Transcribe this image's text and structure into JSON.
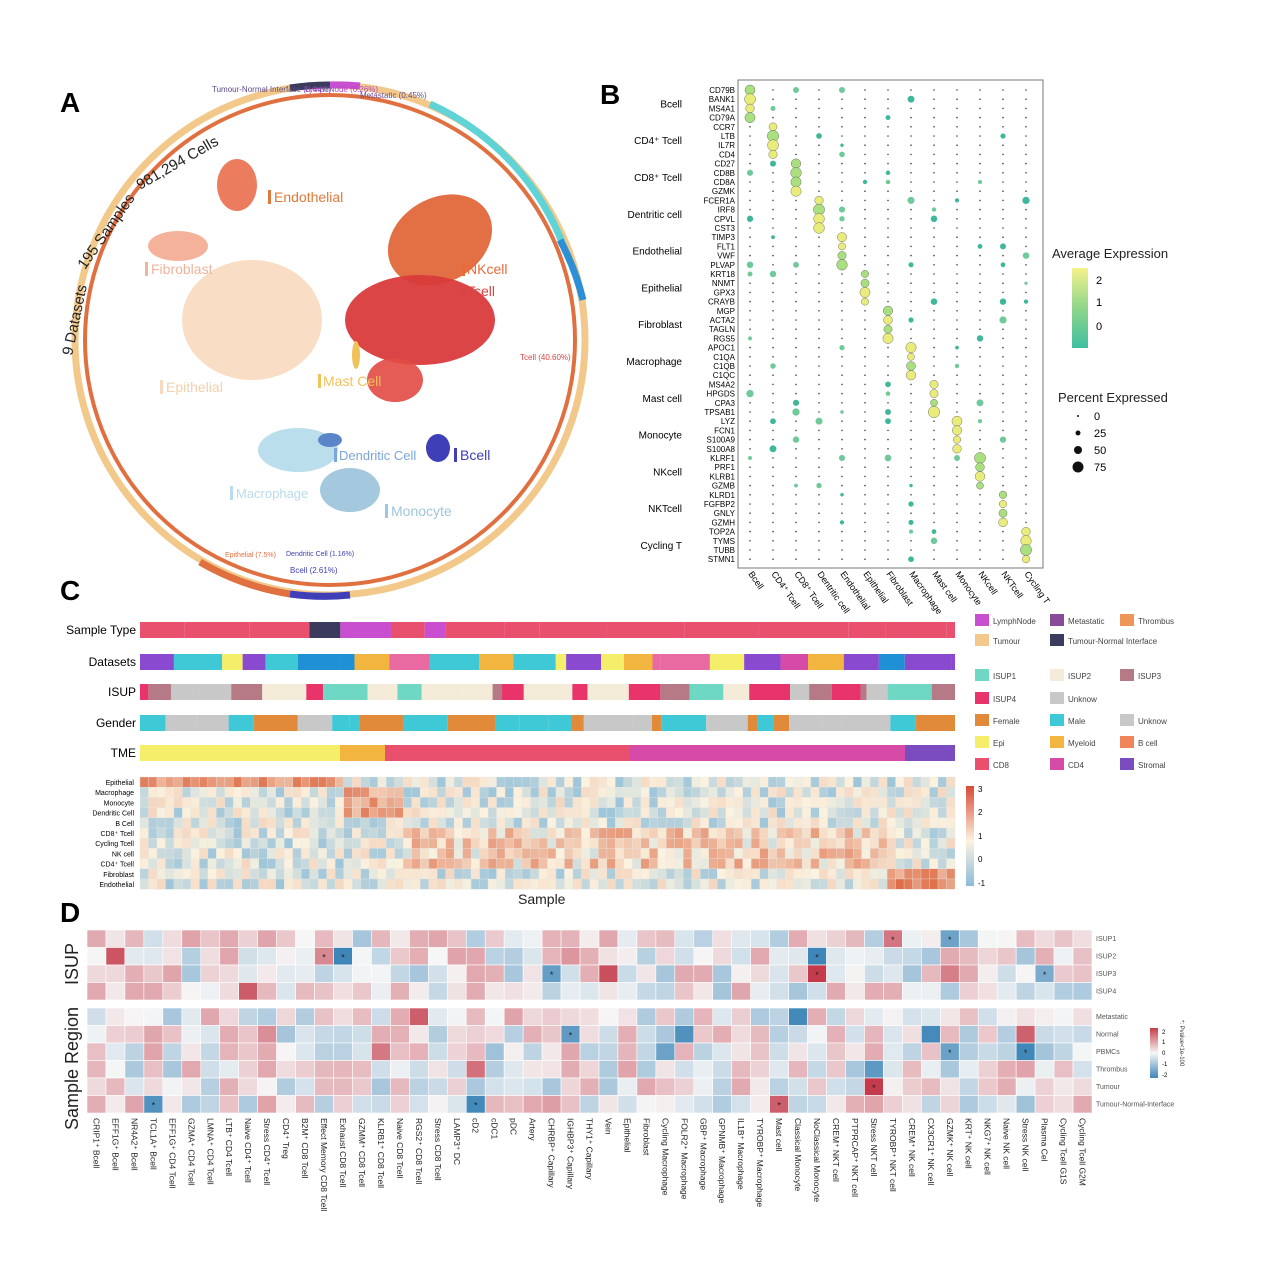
{
  "panel_labels": {
    "a": "A",
    "b": "B",
    "c": "C",
    "d": "D"
  },
  "panel_a": {
    "ring_labels": {
      "datasets": "9 Datasets",
      "samples": "195 Samples",
      "cells": "981,294 Cells"
    },
    "clusters": [
      {
        "name": "Endothelial",
        "color": "#e07a3a"
      },
      {
        "name": "NKcell",
        "color": "#e86b3a"
      },
      {
        "name": "Tcell",
        "color": "#d94444"
      },
      {
        "name": "Fibroblast",
        "color": "#f0b39c"
      },
      {
        "name": "Mast Cell",
        "color": "#f2c25a"
      },
      {
        "name": "Epithelial",
        "color": "#f6d9be"
      },
      {
        "name": "Dendritic Cell",
        "color": "#7aa7d8"
      },
      {
        "name": "Bcell",
        "color": "#3f3fb8"
      },
      {
        "name": "Macrophage",
        "color": "#b7dcec"
      },
      {
        "name": "Monocyte",
        "color": "#9fc6dc"
      }
    ],
    "ring_annotations": {
      "tumour_normal": "Tumour-Normal Interface (0.44%)",
      "lymph_node": "LymphNode (0.26%)",
      "metastatic": "Metastatic (0.45%)",
      "tcell": "Tcell (40.60%)",
      "bcell": "Bcell (2.61%)",
      "dendritic": "Dendritic Cell (1.16%)",
      "epithelial": "Epithelial (7.5%)"
    }
  },
  "panel_b": {
    "chart_data": {
      "type": "scatter",
      "subtype": "dot-plot",
      "y_groups": [
        {
          "name": "Bcell",
          "genes": [
            "CD79B",
            "BANK1",
            "MS4A1",
            "CD79A"
          ]
        },
        {
          "name": "CD4⁺ Tcell",
          "genes": [
            "CCR7",
            "LTB",
            "IL7R",
            "CD4"
          ]
        },
        {
          "name": "CD8⁺ Tcell",
          "genes": [
            "CD27",
            "CD8B",
            "CD8A",
            "GZMK"
          ]
        },
        {
          "name": "Dentritic cell",
          "genes": [
            "FCER1A",
            "IRF8",
            "CPVL",
            "CST3"
          ]
        },
        {
          "name": "Endothelial",
          "genes": [
            "TIMP3",
            "FLT1",
            "VWF",
            "PLVAP"
          ]
        },
        {
          "name": "Epithelial",
          "genes": [
            "KRT18",
            "NNMT",
            "GPX3",
            "CRAYB"
          ]
        },
        {
          "name": "Fibroblast",
          "genes": [
            "MGP",
            "ACTA2",
            "TAGLN",
            "RGS5"
          ]
        },
        {
          "name": "Macrophage",
          "genes": [
            "APOC1",
            "C1QA",
            "C1QB",
            "C1QC"
          ]
        },
        {
          "name": "Mast cell",
          "genes": [
            "MS4A2",
            "HPGDS",
            "CPA3",
            "TPSAB1"
          ]
        },
        {
          "name": "Monocyte",
          "genes": [
            "LYZ",
            "FCN1",
            "S100A9",
            "S100A8"
          ]
        },
        {
          "name": "NKcell",
          "genes": [
            "KLRF1",
            "PRF1",
            "KLRB1",
            "GZMB"
          ]
        },
        {
          "name": "NKTcell",
          "genes": [
            "KLRD1",
            "FGFBP2",
            "GNLY",
            "GZMH"
          ]
        },
        {
          "name": "Cycling T",
          "genes": [
            "TOP2A",
            "TYMS",
            "TUBB",
            "STMN1"
          ]
        }
      ],
      "x_categories": [
        "Bcell",
        "CD4⁺ Tcell",
        "CD8⁺ Tcell",
        "Dentritic cell",
        "Endothelial",
        "Epithelial",
        "Fibroblast",
        "Macrophage",
        "Mast cell",
        "Monocyte",
        "NKcell",
        "NKTcell",
        "Cycling T"
      ],
      "legend_color_title": "Average Expression",
      "legend_color_ticks": [
        "2",
        "1",
        "0"
      ],
      "legend_size_title": "Percent Expressed",
      "legend_size_ticks": [
        "0",
        "25",
        "50",
        "75"
      ]
    }
  },
  "panel_c": {
    "tracks": [
      "Sample Type",
      "Datasets",
      "ISUP",
      "Gender",
      "TME"
    ],
    "legends": [
      [
        {
          "label": "LymphNode",
          "color": "#c84fd0"
        },
        {
          "label": "Metastatic",
          "color": "#8a4a9a"
        },
        {
          "label": "Thrombus",
          "color": "#f0955a"
        },
        {
          "label": "Tumour",
          "color": "#f2c98a"
        },
        {
          "label": "Tumour-Normal Interface",
          "color": "#3b3b5e"
        }
      ],
      [
        {
          "label": "ISUP1",
          "color": "#6fd8c4"
        },
        {
          "label": "ISUP2",
          "color": "#f4ecd8"
        },
        {
          "label": "ISUP3",
          "color": "#b57a85"
        },
        {
          "label": "ISUP4",
          "color": "#e8336b"
        },
        {
          "label": "Unknow",
          "color": "#c8c8c8"
        }
      ],
      [
        {
          "label": "Female",
          "color": "#e08a3a"
        },
        {
          "label": "Male",
          "color": "#3fc8d6"
        },
        {
          "label": "Unknow",
          "color": "#c8c8c8"
        }
      ],
      [
        {
          "label": "Epi",
          "color": "#f4ee6a"
        },
        {
          "label": "Myeloid",
          "color": "#f2b640"
        },
        {
          "label": "B cell",
          "color": "#f0855a"
        },
        {
          "label": "CD8",
          "color": "#e8506e"
        },
        {
          "label": "CD4",
          "color": "#d64aa8"
        },
        {
          "label": "Stromal",
          "color": "#7a4cc0"
        }
      ]
    ],
    "heatmap_rows": [
      "Epithelial",
      "Macrophage",
      "Monocyte",
      "Dendritic Cell",
      "B Cell",
      "CD8⁺ Tcell",
      "Cycling Tcell",
      "NK cell",
      "CD4⁺ Tcell",
      "Fibroblast",
      "Endothelial"
    ],
    "xlabel": "Sample",
    "scale_ticks": [
      "3",
      "2",
      "1",
      "0",
      "-1"
    ]
  },
  "panel_d": {
    "ylabel_top": "ISUP",
    "ylabel_bottom": "Sample Region",
    "rows_top": [
      "ISUP1",
      "ISUP2",
      "ISUP3",
      "ISUP4"
    ],
    "rows_bottom": [
      "Metastatic",
      "Normal",
      "PBMCs",
      "Thrombus",
      "Tumour",
      "Tumour-Normal-Interface"
    ],
    "columns": [
      "CRIP1⁺ Bcell",
      "EFF1G⁺ Bcell",
      "NR4A2⁺ Bcell",
      "TCL1A⁺ Bcell",
      "EFF1G⁺ CD4 Tcell",
      "GZMA⁺ CD4 Tcell",
      "LMNA⁺ CD4 Tcell",
      "LTB⁺ CD4 Tcell",
      "Naive CD4⁺ Tcell",
      "Stress CD4⁺ Tcell",
      "CD4⁺ Treg",
      "B2M⁺ CD8 Tcell",
      "Effect Memory CD8 Tcell",
      "Exhaust CD8 Tcell",
      "GZMM⁺ CD8 Tcell",
      "KLRB1⁺ CD8 Tcell",
      "Naive CD8 Tcell",
      "RGS2⁺ CD8 Tcell",
      "Stress CD8 Tcell",
      "LAMP3⁺ DC",
      "cD2",
      "cDC1",
      "pDC",
      "Artery",
      "CHRBP⁺ Capillary",
      "IGHBP3⁺ Capillary",
      "THY1⁺ Capillary",
      "Vein",
      "Epithelial",
      "Fibroblast",
      "Cycling Macrophage",
      "FOLR2⁺ Macrophage",
      "GBP⁺ Macrophage",
      "GPNMB⁺ Macrophage",
      "IL1B⁺ Macrophage",
      "TYROBP⁺ Macrophage",
      "Mast cell",
      "Classical Monocyte",
      "NoClassical Monocyte",
      "CREM⁺ NKT cell",
      "PTPRCAP⁺ NKT cell",
      "Stress NKT cell",
      "TYROBP⁺ NKT cell",
      "CREM⁺ NK cell",
      "CX3CR1⁺ NK cell",
      "GZMK⁺ NK cell",
      "KRT⁺ NK cell",
      "NKG7⁺ NK cell",
      "Naive NK cell",
      "Stress NK cell",
      "Plasma Cel",
      "Cycling Tcell G1S",
      "Cycling Tcell G2M"
    ],
    "legend_title": "*: Pvalue<1e-100",
    "legend_ticks": [
      "2",
      "1",
      "0",
      "-1",
      "-2"
    ]
  }
}
